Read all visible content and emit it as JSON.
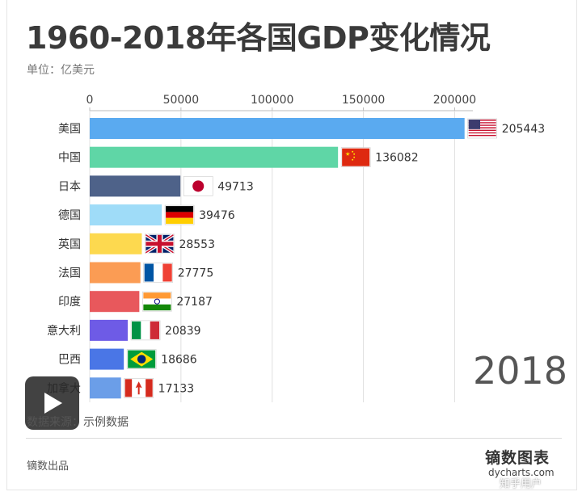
{
  "title": "1960-2018年各国GDP变化情况",
  "unit": "单位：亿美元",
  "year": "2018",
  "source": "数据来源：示例数据",
  "producer": "镝数出品",
  "brand": {
    "name": "镝数图表",
    "url": "dycharts.com"
  },
  "watermark": "知乎用户",
  "colors": {
    "axis": "#bbbbbb",
    "grid": "#e0e0e0"
  },
  "chart_data": {
    "type": "bar",
    "orientation": "horizontal",
    "xlim": [
      0,
      210000
    ],
    "xticks": [
      0,
      50000,
      100000,
      150000,
      200000
    ],
    "categories": [
      "美国",
      "中国",
      "日本",
      "德国",
      "英国",
      "法国",
      "印度",
      "意大利",
      "巴西",
      "加拿大"
    ],
    "values": [
      205443,
      136082,
      49713,
      39476,
      28553,
      27775,
      27187,
      20839,
      18686,
      17133
    ],
    "bar_colors": [
      "#5aaaf0",
      "#5fd6a6",
      "#4e6289",
      "#9fdcf8",
      "#fdd94f",
      "#fb9c54",
      "#e8585c",
      "#6e5be6",
      "#4a76e6",
      "#6b9ee8"
    ],
    "flags": [
      "us-flag-icon",
      "china-flag-icon",
      "japan-flag-icon",
      "germany-flag-icon",
      "uk-flag-icon",
      "france-flag-icon",
      "india-flag-icon",
      "italy-flag-icon",
      "brazil-flag-icon",
      "canada-flag-icon"
    ]
  }
}
